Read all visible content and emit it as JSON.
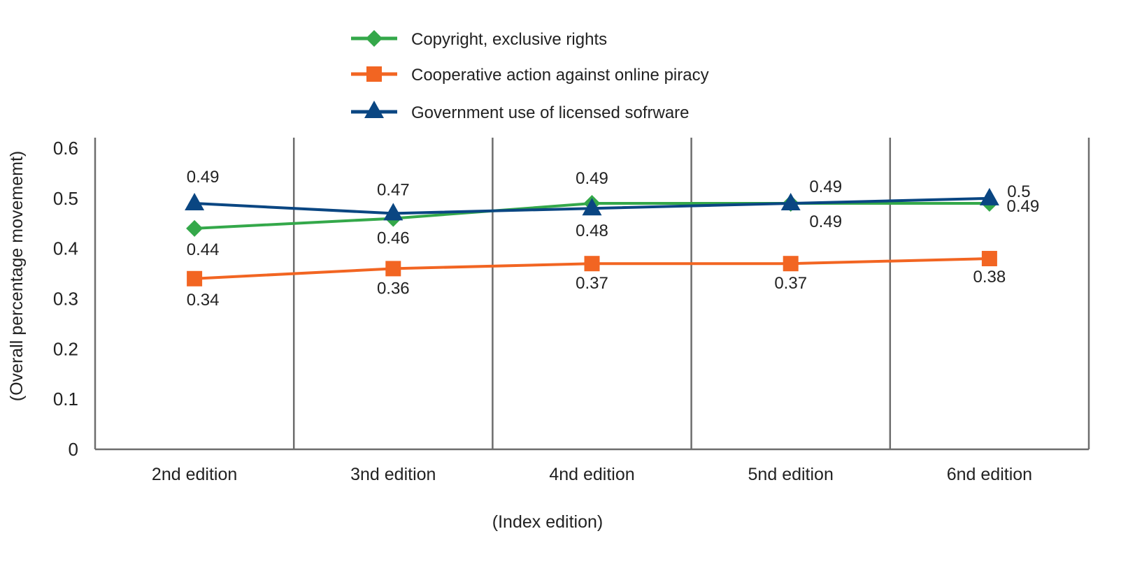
{
  "chart_data": {
    "type": "line",
    "title": "",
    "xlabel": "(Index edition)",
    "ylabel": "(Overall percentage movememt)",
    "ylim": [
      0,
      0.6
    ],
    "yticks": [
      "0",
      "0.1",
      "0.2",
      "0.3",
      "0.4",
      "0.5",
      "0.6"
    ],
    "categories": [
      "2nd edition",
      "3nd edition",
      "4nd edition",
      "5nd edition",
      "6nd edition"
    ],
    "grid": "vertical category separators",
    "legend_position": "top",
    "series": [
      {
        "name": "Copyright, exclusive rights",
        "color": "#34a84a",
        "marker": "diamond",
        "values": [
          0.44,
          0.46,
          0.49,
          0.49,
          0.49
        ]
      },
      {
        "name": "Cooperative action against online piracy",
        "color": "#f26522",
        "marker": "square",
        "values": [
          0.34,
          0.36,
          0.37,
          0.37,
          0.38
        ]
      },
      {
        "name": "Government use of licensed sofrware",
        "color": "#0a4682",
        "marker": "triangle",
        "values": [
          0.49,
          0.47,
          0.48,
          0.49,
          0.5
        ]
      }
    ]
  }
}
